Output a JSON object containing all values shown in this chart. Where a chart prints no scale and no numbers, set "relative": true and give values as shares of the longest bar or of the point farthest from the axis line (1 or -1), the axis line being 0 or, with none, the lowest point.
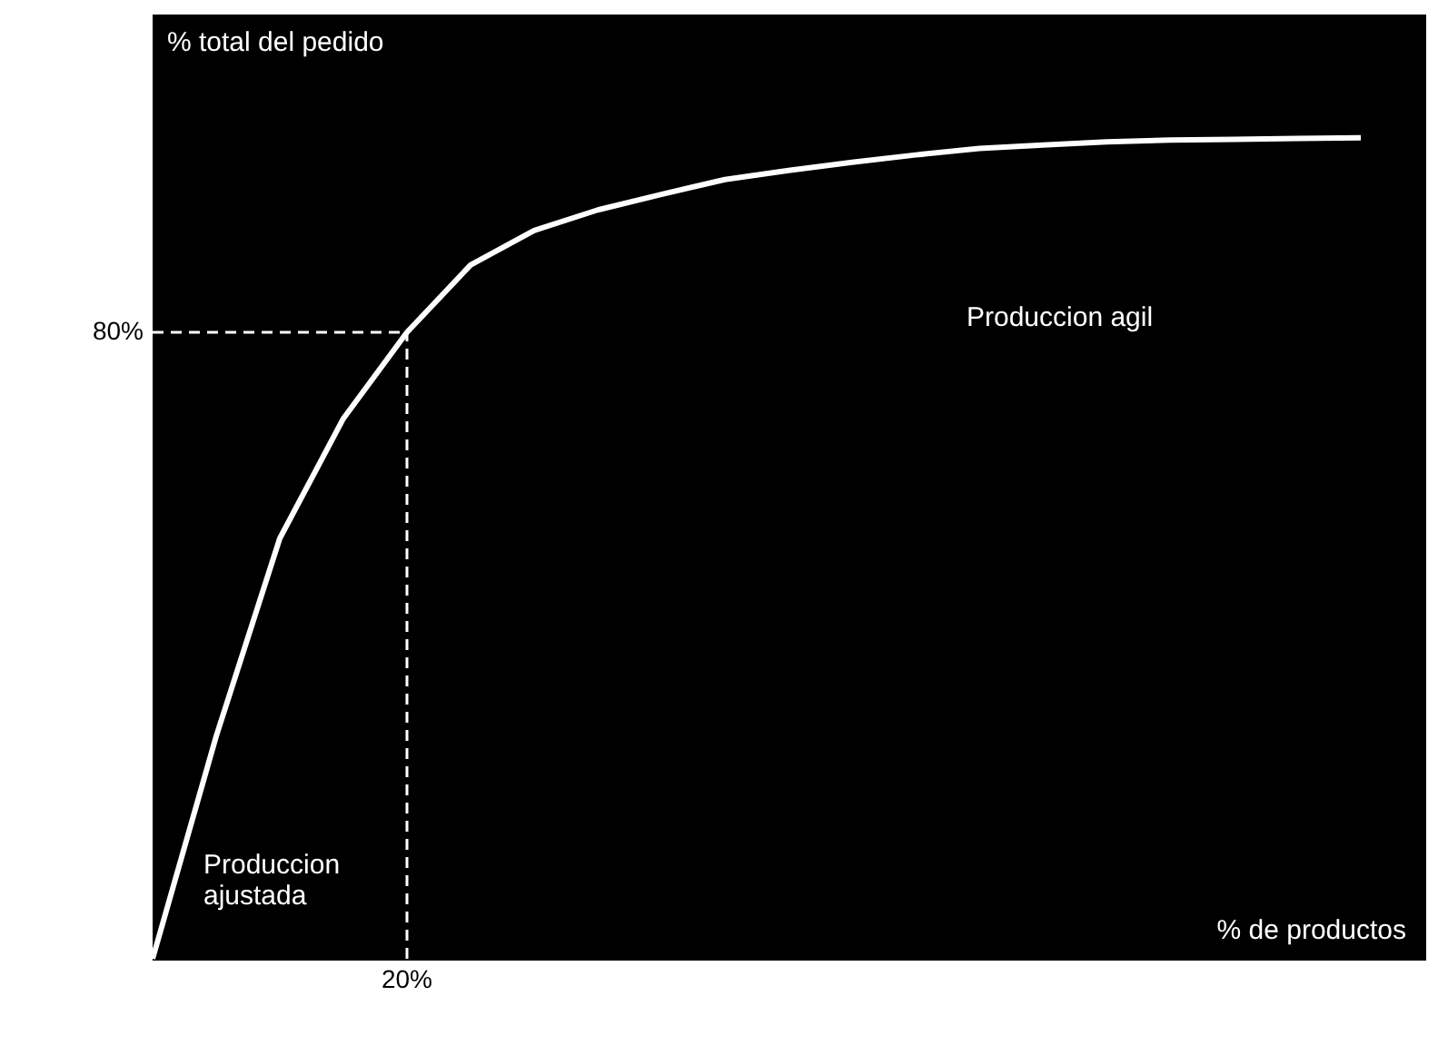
{
  "chart_data": {
    "type": "line",
    "relative": true,
    "xlabel": "% de productos",
    "ylabel": "% total del pedido",
    "categories": [
      null,
      null,
      null,
      null,
      null,
      null,
      null,
      null,
      null,
      null,
      null,
      null,
      null,
      null,
      null,
      null,
      null,
      null,
      null,
      null
    ],
    "series": [
      {
        "color": "#ffffff",
        "values": [
          0,
          0.271,
          0.512,
          0.658,
          0.763,
          0.845,
          0.887,
          0.912,
          0.931,
          0.949,
          0.96,
          0.97,
          0.979,
          0.987,
          0.991,
          0.995,
          0.997,
          0.998,
          0.999,
          1
        ]
      }
    ],
    "ref_lines": [
      {
        "axis": "y",
        "value": 0.763,
        "color": "#ffffff",
        "line_style": "dashed"
      }
    ],
    "annotations": [
      "Produccion agil",
      "Produccion\najustada",
      "80%",
      "20%"
    ],
    "marker": "none",
    "line_style": "solid"
  }
}
